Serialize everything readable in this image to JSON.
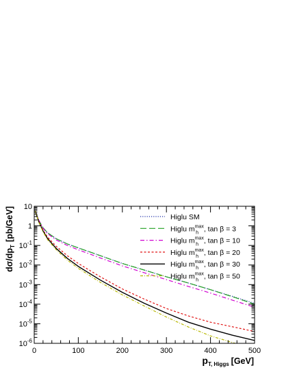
{
  "chart_data": {
    "type": "line",
    "xlabel": "p",
    "xlabel_sub": "T, Higgs",
    "xlabel_unit": "[GeV]",
    "ylabel": "dσ/dp",
    "ylabel_sub": "T",
    "ylabel_unit": "[pb/GeV]",
    "xlim": [
      0,
      500
    ],
    "ylim": [
      1e-06,
      10
    ],
    "yscale": "log",
    "x_ticks": [
      "0",
      "100",
      "200",
      "300",
      "400",
      "500"
    ],
    "y_ticks": [
      {
        "base": "10",
        "exp": "-6"
      },
      {
        "base": "10",
        "exp": "-5"
      },
      {
        "base": "10",
        "exp": "-4"
      },
      {
        "base": "10",
        "exp": "-3"
      },
      {
        "base": "10",
        "exp": "-2"
      },
      {
        "base": "10",
        "exp": "-1"
      },
      {
        "base": "1",
        "exp": ""
      },
      {
        "base": "10",
        "exp": ""
      }
    ],
    "grid": false,
    "legend_position": "top-right",
    "x": [
      2,
      5,
      10,
      20,
      30,
      50,
      75,
      100,
      150,
      200,
      250,
      300,
      350,
      400,
      450,
      500
    ],
    "series": [
      {
        "legend": {
          "prefix": "Higlu SM",
          "sup": "",
          "sub": "",
          "suffix": ""
        },
        "color": "#1f2fa8",
        "style": "dotted",
        "values": [
          6.0,
          4.0,
          2.0,
          0.8,
          0.45,
          0.22,
          0.12,
          0.075,
          0.03,
          0.012,
          0.0055,
          0.0025,
          0.0012,
          0.00055,
          0.00025,
          0.00011
        ]
      },
      {
        "legend": {
          "prefix": "Higlu m",
          "sup": "max",
          "sub": "h",
          "suffix": ", tan β = 3"
        },
        "color": "#22a022",
        "style": "longdash",
        "values": [
          6.0,
          4.0,
          2.0,
          0.8,
          0.45,
          0.22,
          0.12,
          0.075,
          0.03,
          0.012,
          0.0055,
          0.0025,
          0.0012,
          0.00055,
          0.00024,
          0.0001
        ]
      },
      {
        "legend": {
          "prefix": "Higlu m",
          "sup": "max",
          "sub": "h",
          "suffix": ", tan β = 10"
        },
        "color": "#d000d0",
        "style": "dashdot",
        "values": [
          6.0,
          4.0,
          2.0,
          0.75,
          0.4,
          0.19,
          0.1,
          0.06,
          0.023,
          0.009,
          0.004,
          0.0018,
          0.0008,
          0.00037,
          0.00016,
          7e-05
        ]
      },
      {
        "legend": {
          "prefix": "Higlu m",
          "sup": "max",
          "sub": "h",
          "suffix": ", tan β = 20"
        },
        "color": "#e01010",
        "style": "dashed",
        "values": [
          6.0,
          3.8,
          1.8,
          0.6,
          0.27,
          0.09,
          0.03,
          0.012,
          0.0025,
          0.0006,
          0.00018,
          6e-05,
          2.5e-05,
          1.2e-05,
          7e-06,
          4e-06
        ]
      },
      {
        "legend": {
          "prefix": "Higlu m",
          "sup": "max",
          "sub": "h",
          "suffix": ", tan β = 30"
        },
        "color": "#000000",
        "style": "solid",
        "values": [
          6.0,
          3.7,
          1.7,
          0.55,
          0.23,
          0.07,
          0.022,
          0.0085,
          0.0017,
          0.0004,
          0.00011,
          3.5e-05,
          1.2e-05,
          5.3e-06,
          2.6e-06,
          1.4e-06
        ]
      },
      {
        "legend": {
          "prefix": "Higlu m",
          "sup": "max",
          "sub": "h",
          "suffix": ", tan β = 50"
        },
        "color": "#b8b800",
        "style": "dotdash",
        "values": [
          6.0,
          3.6,
          1.6,
          0.5,
          0.2,
          0.06,
          0.018,
          0.0068,
          0.0013,
          0.0003,
          8e-05,
          2.2e-05,
          6.8e-06,
          2.4e-06,
          1.1e-06,
          5e-07
        ]
      }
    ]
  }
}
